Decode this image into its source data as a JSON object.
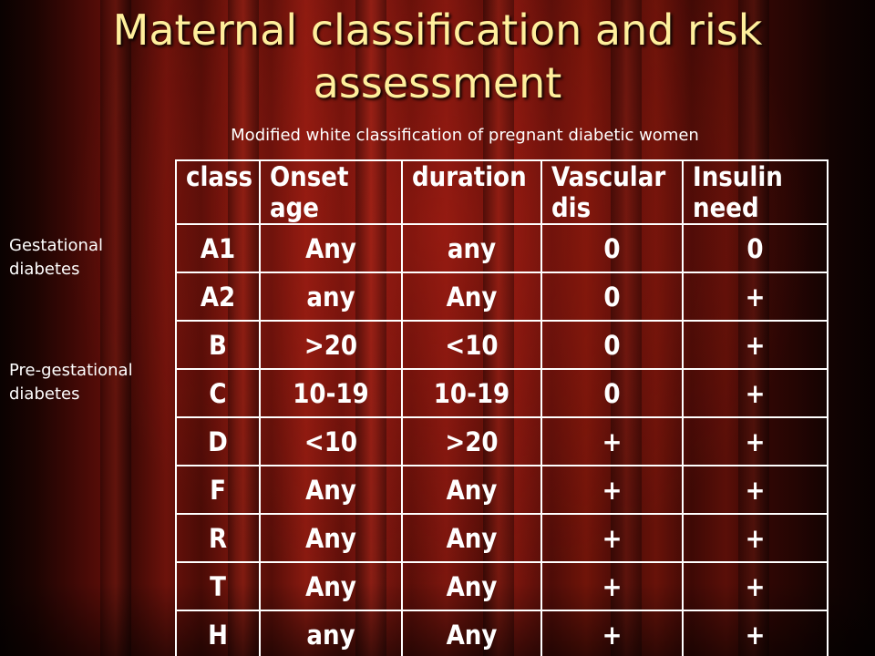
{
  "slide": {
    "title_line1": "Maternal classification and risk",
    "title_line2": "assessment",
    "subtitle": "Modified white classification of pregnant diabetic women"
  },
  "side_labels": {
    "gestational_line1": "Gestational",
    "gestational_line2": "diabetes",
    "pregestational_line1": "Pre-gestational",
    "pregestational_line2": "diabetes"
  },
  "table": {
    "headers": [
      "class",
      "Onset age",
      "duration",
      "Vascular dis",
      "Insulin need"
    ],
    "rows": [
      [
        "A1",
        "Any",
        "any",
        "0",
        "0"
      ],
      [
        "A2",
        "any",
        "Any",
        "0",
        "+"
      ],
      [
        "B",
        ">20",
        "<10",
        "0",
        "+"
      ],
      [
        "C",
        "10-19",
        "10-19",
        "0",
        "+"
      ],
      [
        "D",
        "<10",
        ">20",
        "+",
        "+"
      ],
      [
        "F",
        "Any",
        "Any",
        "+",
        "+"
      ],
      [
        "R",
        "Any",
        "Any",
        "+",
        "+"
      ],
      [
        "T",
        "Any",
        "Any",
        "+",
        "+"
      ],
      [
        "H",
        "any",
        "Any",
        "+",
        "+"
      ]
    ]
  },
  "colors": {
    "title": "#ffef9c",
    "text": "#ffffff",
    "curtain": "#6c120b"
  }
}
